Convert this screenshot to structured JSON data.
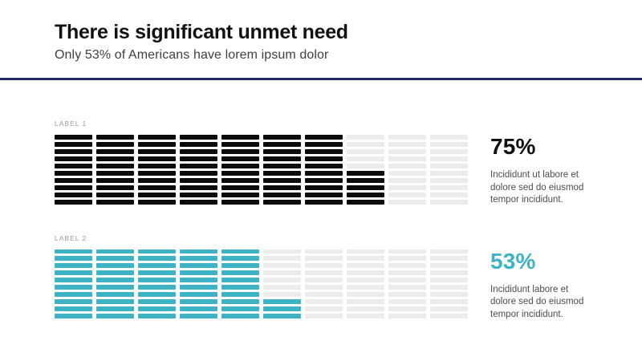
{
  "slide": {
    "title": "There is significant unmet need",
    "subtitle": "Only 53% of Americans have lorem ipsum dolor"
  },
  "colors": {
    "background": "#ffffff",
    "divider_navy": "#1b2a5e",
    "title_text": "#121212",
    "subtitle_text": "#3f3f3f",
    "chart_label_gray": "#9b9b9b",
    "description_gray": "#4c4c4c",
    "empty_cell_gray": "#ececec",
    "black_fill": "#0b0b0b",
    "teal_fill": "#3eb3c5"
  },
  "chart_data": [
    {
      "type": "waffle",
      "label": "LABEL 1",
      "value_percent": 75,
      "value_label": "75%",
      "units_total": 100,
      "units_filled": 75,
      "grid": {
        "columns": 10,
        "rows": 10
      },
      "fill_order": "columns fill left-to-right; partial column fills bottom-up",
      "fill_color": "#0b0b0b",
      "empty_color": "#ececec",
      "value_color": "#121212",
      "description_lines": [
        "Incididunt ut labore et",
        "dolore sed do eiusmod",
        "tempor incididunt."
      ]
    },
    {
      "type": "waffle",
      "label": "LABEL 2",
      "value_percent": 53,
      "value_label": "53%",
      "units_total": 100,
      "units_filled": 53,
      "grid": {
        "columns": 10,
        "rows": 10
      },
      "fill_order": "columns fill left-to-right; partial column fills bottom-up",
      "fill_color": "#3eb3c5",
      "empty_color": "#ececec",
      "value_color": "#3eb3c5",
      "description_lines": [
        "Incididunt labore et",
        "dolore sed do eiusmod",
        "tempor incididunt."
      ]
    }
  ]
}
